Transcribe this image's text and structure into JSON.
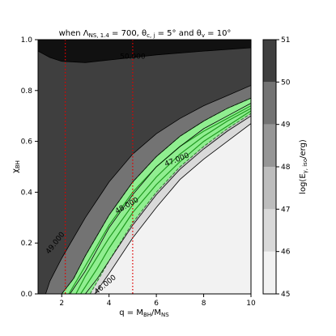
{
  "chart_data": {
    "type": "contour",
    "title": "when Λ_NS,1.4 = 700, θ_c,j = 5° and θ_v = 10°",
    "xlabel": "q = M_BH/M_NS",
    "ylabel": "χ_BH",
    "xlim": [
      1,
      10
    ],
    "ylim": [
      0,
      1.0
    ],
    "xticks": [
      "2",
      "4",
      "6",
      "8",
      "10"
    ],
    "yticks": [
      "0.0",
      "0.2",
      "0.4",
      "0.6",
      "0.8",
      "1.0"
    ],
    "colorbar": {
      "label": "log(E_γ,iso/erg)",
      "levels": [
        45,
        46,
        47,
        48,
        49,
        50,
        51
      ],
      "ticks": [
        "45",
        "46",
        "47",
        "48",
        "49",
        "50",
        "51"
      ],
      "colors": [
        "#f2f2f2",
        "#d9d9d9",
        "#bdbdbd",
        "#969696",
        "#737373",
        "#3f3f3f",
        "#111111"
      ]
    },
    "contour_labels": [
      {
        "text": "50.000",
        "x": 5.0,
        "y": 0.925
      },
      {
        "text": "49.000",
        "x": 1.8,
        "y": 0.195
      },
      {
        "text": "48.000",
        "x": 4.8,
        "y": 0.34
      },
      {
        "text": "47.000",
        "x": 6.9,
        "y": 0.52
      },
      {
        "text": "46.000",
        "x": 3.9,
        "y": 0.03
      }
    ],
    "contours": {
      "50": [
        [
          1,
          0.955
        ],
        [
          1.5,
          0.93
        ],
        [
          2,
          0.915
        ],
        [
          3,
          0.91
        ],
        [
          4,
          0.92
        ],
        [
          5,
          0.93
        ],
        [
          6,
          0.94
        ],
        [
          8,
          0.955
        ],
        [
          10,
          0.968
        ]
      ],
      "49": [
        [
          1.32,
          0.0
        ],
        [
          1.5,
          0.05
        ],
        [
          2,
          0.14
        ],
        [
          3,
          0.3
        ],
        [
          4,
          0.44
        ],
        [
          5,
          0.55
        ],
        [
          6,
          0.63
        ],
        [
          7,
          0.69
        ],
        [
          8,
          0.74
        ],
        [
          9,
          0.78
        ],
        [
          10,
          0.82
        ]
      ],
      "48": [
        [
          2.0,
          0.0
        ],
        [
          2.5,
          0.06
        ],
        [
          3,
          0.15
        ],
        [
          4,
          0.31
        ],
        [
          5,
          0.44
        ],
        [
          6,
          0.54
        ],
        [
          7,
          0.62
        ],
        [
          8,
          0.68
        ],
        [
          9,
          0.73
        ],
        [
          10,
          0.77
        ]
      ],
      "47": [
        [
          2.35,
          0.0
        ],
        [
          3,
          0.09
        ],
        [
          4,
          0.26
        ],
        [
          5,
          0.39
        ],
        [
          6,
          0.5
        ],
        [
          7,
          0.58
        ],
        [
          8,
          0.65
        ],
        [
          9,
          0.7
        ],
        [
          10,
          0.75
        ]
      ],
      "46": [
        [
          3.0,
          0.0
        ],
        [
          3.5,
          0.06
        ],
        [
          4,
          0.13
        ],
        [
          5,
          0.27
        ],
        [
          6,
          0.39
        ],
        [
          7,
          0.49
        ],
        [
          8,
          0.57
        ],
        [
          9,
          0.64
        ],
        [
          10,
          0.7
        ]
      ],
      "45": [
        [
          3.4,
          0.0
        ],
        [
          4,
          0.08
        ],
        [
          5,
          0.22
        ],
        [
          6,
          0.34
        ],
        [
          7,
          0.45
        ],
        [
          8,
          0.53
        ],
        [
          9,
          0.6
        ],
        [
          10,
          0.67
        ]
      ]
    },
    "highlight_band": {
      "color": "#90ee90",
      "upper": [
        [
          2.0,
          0.0
        ],
        [
          2.5,
          0.06
        ],
        [
          3,
          0.15
        ],
        [
          4,
          0.31
        ],
        [
          5,
          0.44
        ],
        [
          6,
          0.54
        ],
        [
          7,
          0.62
        ],
        [
          8,
          0.68
        ],
        [
          9,
          0.73
        ],
        [
          10,
          0.77
        ]
      ],
      "lower": [
        [
          3.2,
          0.0
        ],
        [
          4,
          0.13
        ],
        [
          5,
          0.28
        ],
        [
          6,
          0.4
        ],
        [
          7,
          0.5
        ],
        [
          8,
          0.58
        ],
        [
          9,
          0.65
        ],
        [
          10,
          0.71
        ]
      ],
      "lines": [
        [
          [
            2.3,
            0.0
          ],
          [
            3,
            0.11
          ],
          [
            4,
            0.27
          ],
          [
            5,
            0.4
          ],
          [
            6,
            0.5
          ],
          [
            7,
            0.58
          ],
          [
            8,
            0.64
          ],
          [
            9,
            0.69
          ],
          [
            10,
            0.74
          ]
        ],
        [
          [
            2.6,
            0.0
          ],
          [
            3,
            0.07
          ],
          [
            4,
            0.22
          ],
          [
            5,
            0.35
          ],
          [
            6,
            0.46
          ],
          [
            7,
            0.55
          ],
          [
            8,
            0.62
          ],
          [
            9,
            0.68
          ],
          [
            10,
            0.73
          ]
        ],
        [
          [
            2.8,
            0.0
          ],
          [
            3.5,
            0.1
          ],
          [
            4,
            0.18
          ],
          [
            5,
            0.32
          ],
          [
            6,
            0.43
          ],
          [
            7,
            0.52
          ],
          [
            8,
            0.6
          ],
          [
            9,
            0.66
          ],
          [
            10,
            0.72
          ]
        ]
      ]
    },
    "vertical_lines": {
      "x": [
        2.15,
        5.0
      ],
      "color": "#e00000",
      "style": "dotted"
    }
  }
}
